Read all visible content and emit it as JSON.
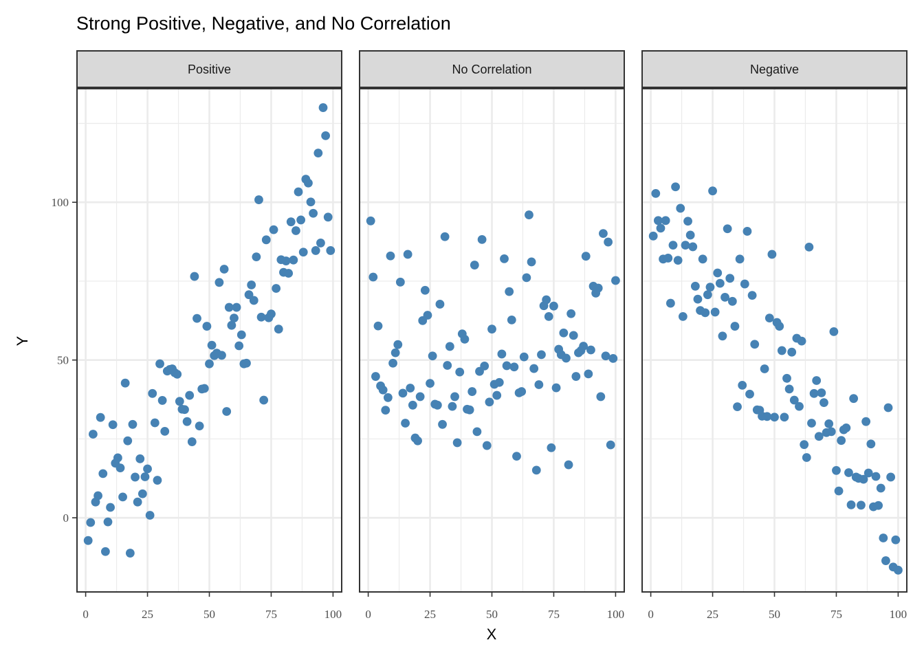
{
  "chart_data": {
    "type": "scatter",
    "title": "Strong Positive, Negative, and No Correlation",
    "xlabel": "X",
    "ylabel": "Y",
    "xlim": [
      -3.5,
      103.5
    ],
    "ylim": [
      -23.5,
      136
    ],
    "x_ticks": [
      0,
      25,
      50,
      75,
      100
    ],
    "y_ticks": [
      0,
      50,
      100
    ],
    "x_tick_labels": [
      "0",
      "25",
      "50",
      "75",
      "100"
    ],
    "y_tick_labels": [
      "0",
      "50",
      "100"
    ],
    "grid": true,
    "point_color": "#4682B4",
    "panels": [
      {
        "name": "Positive",
        "points": [
          [
            1,
            -7.2
          ],
          [
            2,
            -1.5
          ],
          [
            3,
            26.5
          ],
          [
            4,
            5
          ],
          [
            5,
            7
          ],
          [
            6,
            31.8
          ],
          [
            7,
            14
          ],
          [
            8,
            -10.7
          ],
          [
            9,
            -1.3
          ],
          [
            10,
            3.3
          ],
          [
            11,
            29.5
          ],
          [
            12,
            17.3
          ],
          [
            13,
            19
          ],
          [
            14,
            15.8
          ],
          [
            15,
            6.6
          ],
          [
            16,
            42.7
          ],
          [
            17,
            24.4
          ],
          [
            18,
            -11.2
          ],
          [
            19,
            29.6
          ],
          [
            20,
            12.9
          ],
          [
            21,
            5
          ],
          [
            22,
            18.7
          ],
          [
            23,
            7.6
          ],
          [
            24,
            13
          ],
          [
            25,
            15.5
          ],
          [
            26,
            0.8
          ],
          [
            27,
            39.4
          ],
          [
            28,
            30.1
          ],
          [
            29,
            11.9
          ],
          [
            30,
            48.8
          ],
          [
            31,
            37.2
          ],
          [
            32,
            27.4
          ],
          [
            33,
            46.5
          ],
          [
            34,
            47
          ],
          [
            35,
            47.2
          ],
          [
            36,
            46
          ],
          [
            37,
            45.5
          ],
          [
            38,
            36.9
          ],
          [
            39,
            34.4
          ],
          [
            40,
            34.3
          ],
          [
            41,
            30.5
          ],
          [
            42,
            38.8
          ],
          [
            43,
            24.1
          ],
          [
            44,
            76.5
          ],
          [
            45,
            63.2
          ],
          [
            46,
            29.1
          ],
          [
            47,
            40.8
          ],
          [
            48,
            41
          ],
          [
            49,
            60.7
          ],
          [
            50,
            48.8
          ],
          [
            51,
            54.7
          ],
          [
            52,
            51.4
          ],
          [
            53,
            52.2
          ],
          [
            54,
            74.6
          ],
          [
            55,
            51.5
          ],
          [
            56,
            78.8
          ],
          [
            57,
            33.7
          ],
          [
            58,
            66.7
          ],
          [
            59,
            61
          ],
          [
            60,
            63.3
          ],
          [
            61,
            66.7
          ],
          [
            62,
            54.5
          ],
          [
            63,
            58
          ],
          [
            64,
            48.8
          ],
          [
            65,
            49
          ],
          [
            66,
            70.7
          ],
          [
            67,
            73.8
          ],
          [
            68,
            68.9
          ],
          [
            69,
            82.7
          ],
          [
            70,
            100.8
          ],
          [
            71,
            63.6
          ],
          [
            72,
            37.3
          ],
          [
            73,
            88.1
          ],
          [
            74,
            63.4
          ],
          [
            75,
            64.6
          ],
          [
            76,
            91.3
          ],
          [
            77,
            72.7
          ],
          [
            78,
            59.8
          ],
          [
            79,
            81.8
          ],
          [
            80,
            77.8
          ],
          [
            81,
            81.4
          ],
          [
            82,
            77.5
          ],
          [
            83,
            93.8
          ],
          [
            84,
            81.7
          ],
          [
            85,
            91
          ],
          [
            86,
            103.3
          ],
          [
            87,
            94.4
          ],
          [
            88,
            84.2
          ],
          [
            89,
            107.3
          ],
          [
            90,
            106.1
          ],
          [
            91,
            100.1
          ],
          [
            92,
            96.5
          ],
          [
            93,
            84.7
          ],
          [
            94,
            115.6
          ],
          [
            95,
            87.1
          ],
          [
            96,
            130
          ],
          [
            97,
            121.1
          ],
          [
            98,
            95.3
          ],
          [
            99,
            84.7
          ]
        ]
      },
      {
        "name": "No Correlation",
        "points": [
          [
            1,
            94.1
          ],
          [
            2,
            76.3
          ],
          [
            3,
            44.8
          ],
          [
            4,
            60.8
          ],
          [
            5,
            41.8
          ],
          [
            6,
            40.5
          ],
          [
            7,
            34.1
          ],
          [
            8,
            38.1
          ],
          [
            9,
            83
          ],
          [
            10,
            49
          ],
          [
            11,
            52.3
          ],
          [
            12,
            54.9
          ],
          [
            13,
            74.7
          ],
          [
            14,
            39.5
          ],
          [
            15,
            30
          ],
          [
            16,
            83.5
          ],
          [
            17,
            41.1
          ],
          [
            18,
            35.7
          ],
          [
            19,
            25.3
          ],
          [
            20,
            24.4
          ],
          [
            21,
            38.4
          ],
          [
            22,
            62.5
          ],
          [
            23,
            72.1
          ],
          [
            24,
            64.2
          ],
          [
            25,
            42.6
          ],
          [
            26,
            51.3
          ],
          [
            27,
            36
          ],
          [
            28,
            35.7
          ],
          [
            29,
            67.7
          ],
          [
            30,
            29.6
          ],
          [
            31,
            89.1
          ],
          [
            32,
            48.3
          ],
          [
            33,
            54.3
          ],
          [
            34,
            35.3
          ],
          [
            35,
            38.4
          ],
          [
            36,
            23.8
          ],
          [
            37,
            46.2
          ],
          [
            38,
            58.3
          ],
          [
            39,
            56.6
          ],
          [
            40,
            34.4
          ],
          [
            41,
            34.2
          ],
          [
            42,
            40
          ],
          [
            43,
            80.1
          ],
          [
            44,
            27.3
          ],
          [
            45,
            46.4
          ],
          [
            46,
            88.2
          ],
          [
            47,
            48.1
          ],
          [
            48,
            22.9
          ],
          [
            49,
            36.7
          ],
          [
            50,
            59.8
          ],
          [
            51,
            42.3
          ],
          [
            52,
            38.8
          ],
          [
            53,
            42.9
          ],
          [
            54,
            51.9
          ],
          [
            55,
            82.1
          ],
          [
            56,
            48.2
          ],
          [
            57,
            71.7
          ],
          [
            58,
            62.7
          ],
          [
            59,
            47.8
          ],
          [
            60,
            19.5
          ],
          [
            61,
            39.6
          ],
          [
            62,
            40
          ],
          [
            63,
            51
          ],
          [
            64,
            76.1
          ],
          [
            65,
            96
          ],
          [
            66,
            81.1
          ],
          [
            67,
            47.3
          ],
          [
            68,
            15.1
          ],
          [
            69,
            42.2
          ],
          [
            70,
            51.7
          ],
          [
            71,
            67.2
          ],
          [
            72,
            69.1
          ],
          [
            73,
            63.8
          ],
          [
            74,
            22.2
          ],
          [
            75,
            67.1
          ],
          [
            76,
            41.2
          ],
          [
            77,
            53.4
          ],
          [
            78,
            51.7
          ],
          [
            79,
            58.6
          ],
          [
            80,
            50.6
          ],
          [
            81,
            16.8
          ],
          [
            82,
            64.7
          ],
          [
            83,
            57.8
          ],
          [
            84,
            44.8
          ],
          [
            85,
            52.3
          ],
          [
            86,
            53
          ],
          [
            87,
            54.4
          ],
          [
            88,
            82.9
          ],
          [
            89,
            45.6
          ],
          [
            90,
            53.2
          ],
          [
            91,
            73.4
          ],
          [
            92,
            71.2
          ],
          [
            93,
            72.8
          ],
          [
            94,
            38.4
          ],
          [
            95,
            90.1
          ],
          [
            96,
            51.3
          ],
          [
            97,
            87.4
          ],
          [
            98,
            23.1
          ],
          [
            99,
            50.5
          ],
          [
            100,
            75.2
          ]
        ]
      },
      {
        "name": "Negative",
        "points": [
          [
            1,
            89.3
          ],
          [
            2,
            102.8
          ],
          [
            3,
            94.2
          ],
          [
            4,
            91.8
          ],
          [
            5,
            82
          ],
          [
            6,
            94.2
          ],
          [
            7,
            82.3
          ],
          [
            8,
            68
          ],
          [
            9,
            86.4
          ],
          [
            10,
            104.9
          ],
          [
            11,
            81.6
          ],
          [
            12,
            98.1
          ],
          [
            13,
            63.8
          ],
          [
            14,
            86.4
          ],
          [
            15,
            94
          ],
          [
            16,
            89.6
          ],
          [
            17,
            85.9
          ],
          [
            18,
            73.4
          ],
          [
            19,
            69.3
          ],
          [
            20,
            65.7
          ],
          [
            21,
            82
          ],
          [
            22,
            65
          ],
          [
            23,
            70.7
          ],
          [
            24,
            73.1
          ],
          [
            25,
            103.6
          ],
          [
            26,
            65.2
          ],
          [
            27,
            77.6
          ],
          [
            28,
            74.3
          ],
          [
            29,
            57.6
          ],
          [
            30,
            69.9
          ],
          [
            31,
            91.6
          ],
          [
            32,
            75.9
          ],
          [
            33,
            68.6
          ],
          [
            34,
            60.7
          ],
          [
            35,
            35.2
          ],
          [
            36,
            82
          ],
          [
            37,
            42
          ],
          [
            38,
            74.1
          ],
          [
            39,
            90.8
          ],
          [
            40,
            39.2
          ],
          [
            41,
            70.5
          ],
          [
            42,
            55
          ],
          [
            43,
            34.2
          ],
          [
            44,
            34.1
          ],
          [
            45,
            32.2
          ],
          [
            46,
            47.2
          ],
          [
            47,
            32.1
          ],
          [
            48,
            63.3
          ],
          [
            49,
            83.5
          ],
          [
            50,
            31.9
          ],
          [
            51,
            61.9
          ],
          [
            52,
            60.7
          ],
          [
            53,
            53
          ],
          [
            54,
            31.9
          ],
          [
            55,
            44.2
          ],
          [
            56,
            40.8
          ],
          [
            57,
            52.5
          ],
          [
            58,
            37.3
          ],
          [
            59,
            56.9
          ],
          [
            60,
            35.3
          ],
          [
            61,
            56
          ],
          [
            62,
            23.2
          ],
          [
            63,
            19.1
          ],
          [
            64,
            85.8
          ],
          [
            65,
            30
          ],
          [
            66,
            39.4
          ],
          [
            67,
            43.5
          ],
          [
            68,
            25.8
          ],
          [
            69,
            39.6
          ],
          [
            70,
            36.5
          ],
          [
            71,
            27
          ],
          [
            72,
            29.8
          ],
          [
            73,
            27.3
          ],
          [
            74,
            59
          ],
          [
            75,
            15
          ],
          [
            76,
            8.5
          ],
          [
            77,
            24.5
          ],
          [
            78,
            27.9
          ],
          [
            79,
            28.5
          ],
          [
            80,
            14.3
          ],
          [
            81,
            4.1
          ],
          [
            82,
            37.8
          ],
          [
            83,
            12.9
          ],
          [
            84,
            12.5
          ],
          [
            85,
            4
          ],
          [
            86,
            12.2
          ],
          [
            87,
            30.5
          ],
          [
            88,
            14.2
          ],
          [
            89,
            23.4
          ],
          [
            90,
            3.5
          ],
          [
            91,
            13.1
          ],
          [
            92,
            3.9
          ],
          [
            93,
            9.4
          ],
          [
            94,
            -6.4
          ],
          [
            95,
            -13.6
          ],
          [
            96,
            34.9
          ],
          [
            97,
            12.9
          ],
          [
            98,
            -15.6
          ],
          [
            99,
            -7
          ],
          [
            100,
            -16.6
          ]
        ]
      }
    ]
  }
}
